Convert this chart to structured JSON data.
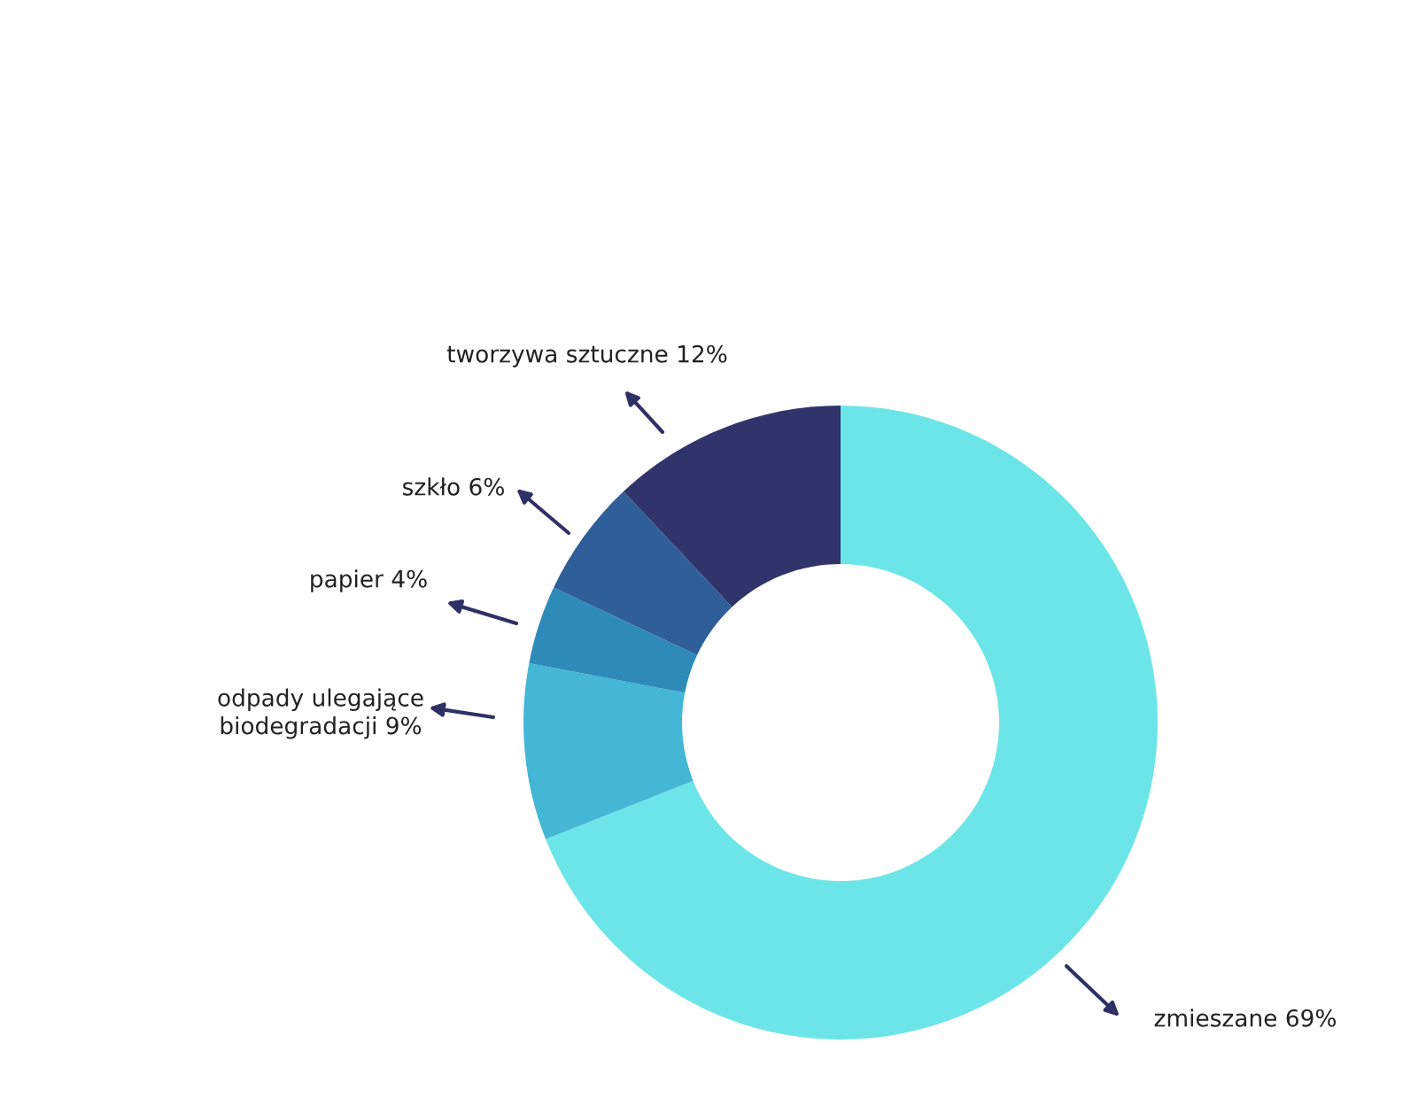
{
  "chart_data": {
    "type": "donut",
    "categories": [
      "zmieszane",
      "odpady ulegające biodegradacji",
      "papier",
      "szkło",
      "tworzywa sztuczne"
    ],
    "values": [
      69,
      9,
      4,
      6,
      12
    ],
    "value_labels": [
      "69%",
      "9%",
      "4%",
      "6%",
      "12%"
    ],
    "colors": [
      "#6ce5e8",
      "#43b7d5",
      "#2e8bb9",
      "#2f5f98",
      "#31346b"
    ],
    "legend": false
  }
}
